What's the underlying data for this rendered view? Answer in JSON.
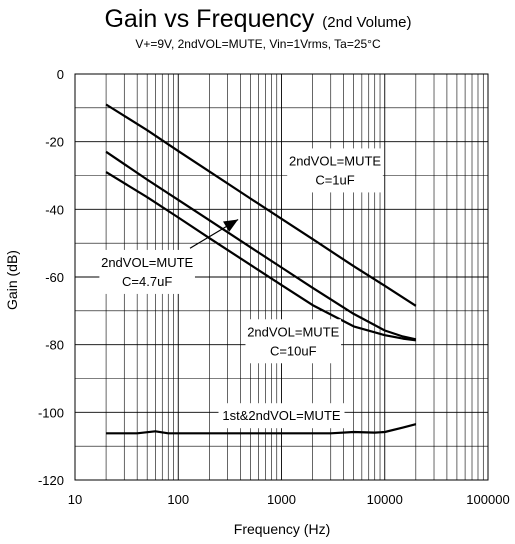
{
  "chart_data": {
    "type": "line",
    "title": "Gain vs Frequency",
    "title_suffix": "(2nd Volume)",
    "subtitle": "V+=9V, 2ndVOL=MUTE, Vin=1Vrms, Ta=25°C",
    "xlabel": "Frequency (Hz)",
    "ylabel": "Gain (dB)",
    "x_scale": "log",
    "xlim": [
      10,
      100000
    ],
    "ylim": [
      -120,
      0
    ],
    "x_ticks": [
      "10",
      "100",
      "1000",
      "10000",
      "100000"
    ],
    "y_ticks": [
      "0",
      "-20",
      "-40",
      "-60",
      "-80",
      "-100",
      "-120"
    ],
    "grid": true,
    "legend": "none",
    "series": [
      {
        "x": [
          20,
          50,
          100,
          200,
          500,
          1000,
          2000,
          5000,
          10000,
          20000
        ],
        "values": [
          -9,
          -16.6,
          -22.8,
          -28.8,
          -36.8,
          -42.8,
          -48.8,
          -56.8,
          -62.6,
          -68.5
        ]
      },
      {
        "x": [
          20,
          50,
          100,
          200,
          500,
          1000,
          2000,
          5000,
          10000,
          15000,
          20000
        ],
        "values": [
          -23,
          -31.2,
          -37.2,
          -43.2,
          -51.2,
          -57.2,
          -63.2,
          -70.9,
          -75.8,
          -77.6,
          -78.4
        ]
      },
      {
        "x": [
          20,
          50,
          100,
          200,
          500,
          1000,
          2000,
          5000,
          10000,
          15000,
          20000
        ],
        "values": [
          -29,
          -36.4,
          -42.4,
          -48.5,
          -56.4,
          -62.4,
          -68.3,
          -74.6,
          -77.2,
          -78.2,
          -78.7
        ]
      },
      {
        "x": [
          20,
          40,
          60,
          80,
          100,
          300,
          1000,
          3000,
          5000,
          8000,
          10000,
          15000,
          20000
        ],
        "values": [
          -106.2,
          -106.2,
          -105.6,
          -106.2,
          -106.2,
          -106.2,
          -106.2,
          -106.2,
          -105.8,
          -106,
          -105.8,
          -104.5,
          -103.5
        ]
      }
    ],
    "annotations": [
      {
        "lines": [
          "2ndVOL=MUTE",
          "C=1uF"
        ],
        "x": 3300,
        "y": -28.5
      },
      {
        "lines": [
          "2ndVOL=MUTE",
          "C=4.7uF"
        ],
        "x": 50,
        "y": -58.5
      },
      {
        "lines": [
          "2ndVOL=MUTE",
          "C=10uF"
        ],
        "x": 1300,
        "y": -79
      },
      {
        "lines": [
          "1st&2ndVOL=MUTE"
        ],
        "x": 1000,
        "y": -101
      }
    ],
    "arrow": {
      "from": [
        130,
        -51.5
      ],
      "to": [
        380,
        -43
      ]
    }
  }
}
